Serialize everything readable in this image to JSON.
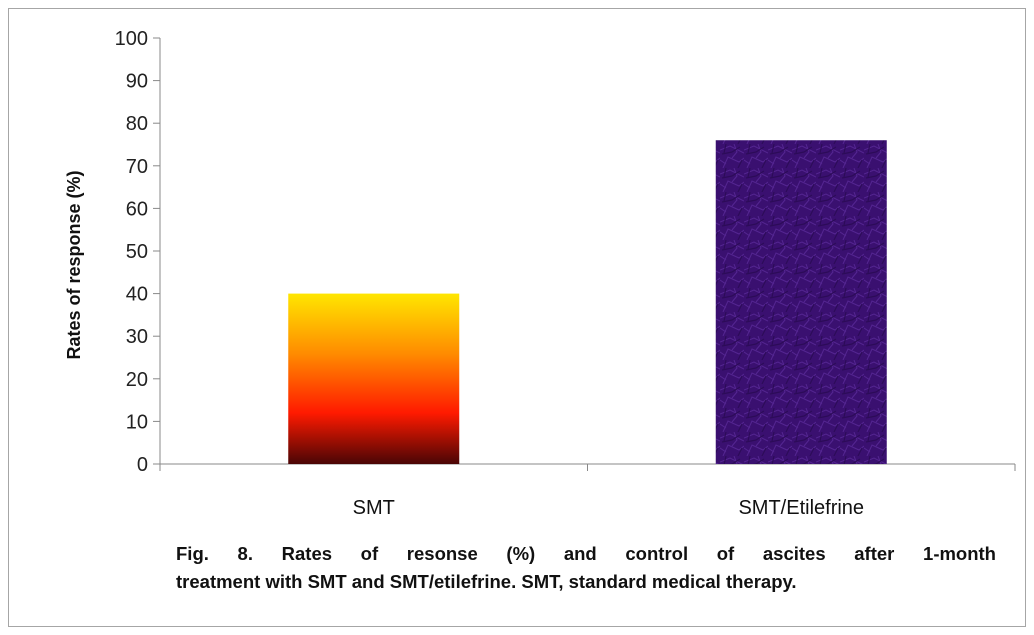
{
  "chart_data": {
    "type": "bar",
    "categories": [
      "SMT",
      "SMT/Etilefrine"
    ],
    "values": [
      40,
      76
    ],
    "ylabel": "Rates of response (%)",
    "ylim": [
      0,
      100
    ],
    "yticks": [
      0,
      10,
      20,
      30,
      40,
      50,
      60,
      70,
      80,
      90,
      100
    ],
    "grid": false,
    "legend": "none",
    "bar_styles": [
      "gradient-yellow-red-black",
      "textured-purple"
    ],
    "colors": {
      "bar1_top": "#ffe600",
      "bar1_mid": "#ff1a00",
      "bar1_bottom": "#4a0505",
      "bar2": "#3a1070",
      "axis": "#888888"
    }
  },
  "caption": {
    "line1": "Fig. 8. Rates of resonse (%) and control of ascites after 1-month",
    "line2": "treatment with SMT and SMT/etilefrine. SMT, standard medical therapy."
  }
}
